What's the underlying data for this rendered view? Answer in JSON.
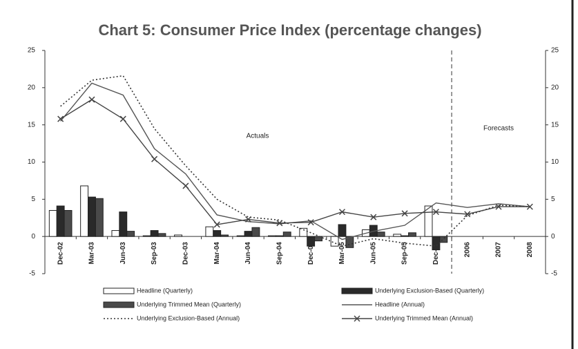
{
  "chart_data": {
    "type": "bar_line",
    "title": "Chart 5: Consumer Price Index (percentage changes)",
    "categories": [
      "Dec-02",
      "Mar-03",
      "Jun-03",
      "Sep-03",
      "Dec-03",
      "Mar-04",
      "Jun-04",
      "Sep-04",
      "Dec-04",
      "Mar-05",
      "Jun-05",
      "Sep-05",
      "Dec-05",
      "2006",
      "2007",
      "2008"
    ],
    "ylim": [
      -5,
      25
    ],
    "yticks": [
      -5,
      0,
      5,
      10,
      15,
      20,
      25
    ],
    "y2lim": [
      -5,
      25
    ],
    "y2ticks": [
      -5,
      0,
      5,
      10,
      15,
      20,
      25
    ],
    "annotations": [
      "Actuals",
      "Forecasts"
    ],
    "divider_after": "Dec-05",
    "series": [
      {
        "name": "Headline (Quarterly)",
        "kind": "bar",
        "color": "#ffffff",
        "values": [
          3.5,
          6.8,
          0.8,
          0.1,
          0.2,
          1.3,
          0.1,
          0.1,
          1.1,
          -1.3,
          0.9,
          0.3,
          4.1,
          null,
          null,
          null
        ]
      },
      {
        "name": "Underlying Exclusion-Based (Quarterly)",
        "kind": "bar",
        "color": "#2a2a2a",
        "values": [
          4.1,
          5.3,
          3.3,
          0.8,
          0,
          0.8,
          0.7,
          0.1,
          -1.3,
          1.6,
          1.5,
          0.1,
          -1.8,
          null,
          null,
          null
        ]
      },
      {
        "name": "Underlying Trimmed Mean (Quarterly)",
        "kind": "bar",
        "color": "#4a4a4a",
        "values": [
          3.5,
          5.1,
          0.7,
          0.4,
          0,
          0.2,
          1.2,
          0.6,
          -0.6,
          -1.5,
          0.6,
          0.5,
          -0.8,
          null,
          null,
          null
        ]
      },
      {
        "name": "Headline (Annual)",
        "kind": "line",
        "color": "#555555",
        "values": [
          15.5,
          20.6,
          19.0,
          11.8,
          8.4,
          2.9,
          2.0,
          1.7,
          2.1,
          -0.4,
          0.7,
          1.5,
          4.5,
          3.9,
          4.4,
          4.0
        ]
      },
      {
        "name": "Underlying Exclusion-Based (Annual)",
        "kind": "line",
        "dash": "dotted",
        "color": "#333333",
        "values": [
          17.5,
          21.0,
          21.6,
          14.5,
          9.5,
          5.0,
          2.6,
          2.2,
          0.5,
          -1.3,
          -0.3,
          -0.9,
          -1.3,
          2.8,
          4.2,
          4.0
        ]
      },
      {
        "name": "Underlying Trimmed Mean (Annual)",
        "kind": "line",
        "marker": "x",
        "color": "#444444",
        "values": [
          15.8,
          18.4,
          15.8,
          10.4,
          6.8,
          1.6,
          2.3,
          1.8,
          1.9,
          3.3,
          2.6,
          3.1,
          3.3,
          3.0,
          4.0,
          4.0
        ]
      }
    ]
  }
}
